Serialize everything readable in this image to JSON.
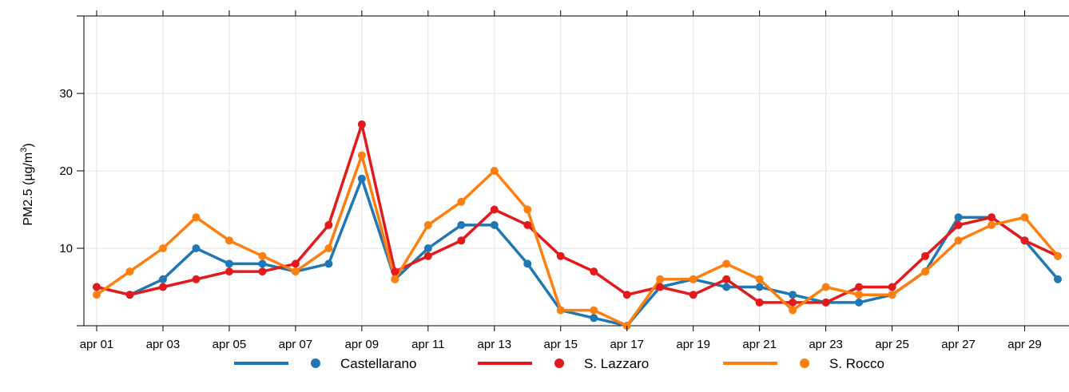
{
  "chart_data": {
    "type": "line",
    "title": "",
    "xlabel": "",
    "ylabel": {
      "prefix": "PM2.5 (",
      "unit": "µg/m",
      "sup": "3",
      "suffix": ")"
    },
    "x": [
      "apr 01",
      "apr 02",
      "apr 03",
      "apr 04",
      "apr 05",
      "apr 06",
      "apr 07",
      "apr 08",
      "apr 09",
      "apr 10",
      "apr 11",
      "apr 12",
      "apr 13",
      "apr 14",
      "apr 15",
      "apr 16",
      "apr 17",
      "apr 18",
      "apr 19",
      "apr 20",
      "apr 21",
      "apr 22",
      "apr 23",
      "apr 24",
      "apr 25",
      "apr 26",
      "apr 27",
      "apr 28",
      "apr 29",
      "apr 30"
    ],
    "x_tick_labels": [
      "apr 01",
      "apr 03",
      "apr 05",
      "apr 07",
      "apr 09",
      "apr 11",
      "apr 13",
      "apr 15",
      "apr 17",
      "apr 19",
      "apr 21",
      "apr 23",
      "apr 25",
      "apr 27",
      "apr 29"
    ],
    "y_ticks": [
      10,
      20,
      30
    ],
    "ylim": [
      0,
      40
    ],
    "grid": true,
    "legend_position": "bottom",
    "series": [
      {
        "name": "Castellarano",
        "color": "#1f77b4",
        "values": [
          5,
          4,
          6,
          10,
          8,
          8,
          7,
          8,
          19,
          6,
          10,
          13,
          13,
          8,
          2,
          1,
          0,
          5,
          6,
          5,
          5,
          4,
          3,
          3,
          4,
          7,
          14,
          14,
          11,
          6
        ]
      },
      {
        "name": "S. Lazzaro",
        "color": "#e31a1c",
        "values": [
          5,
          4,
          5,
          6,
          7,
          7,
          8,
          13,
          26,
          7,
          9,
          11,
          15,
          13,
          9,
          7,
          4,
          5,
          4,
          6,
          3,
          3,
          3,
          5,
          5,
          9,
          13,
          14,
          11,
          9
        ]
      },
      {
        "name": "S. Rocco",
        "color": "#ff7f0e",
        "values": [
          4,
          7,
          10,
          14,
          11,
          9,
          7,
          10,
          22,
          6,
          13,
          16,
          20,
          15,
          2,
          2,
          0,
          6,
          6,
          8,
          6,
          2,
          5,
          4,
          4,
          7,
          11,
          13,
          14,
          9
        ]
      }
    ]
  }
}
